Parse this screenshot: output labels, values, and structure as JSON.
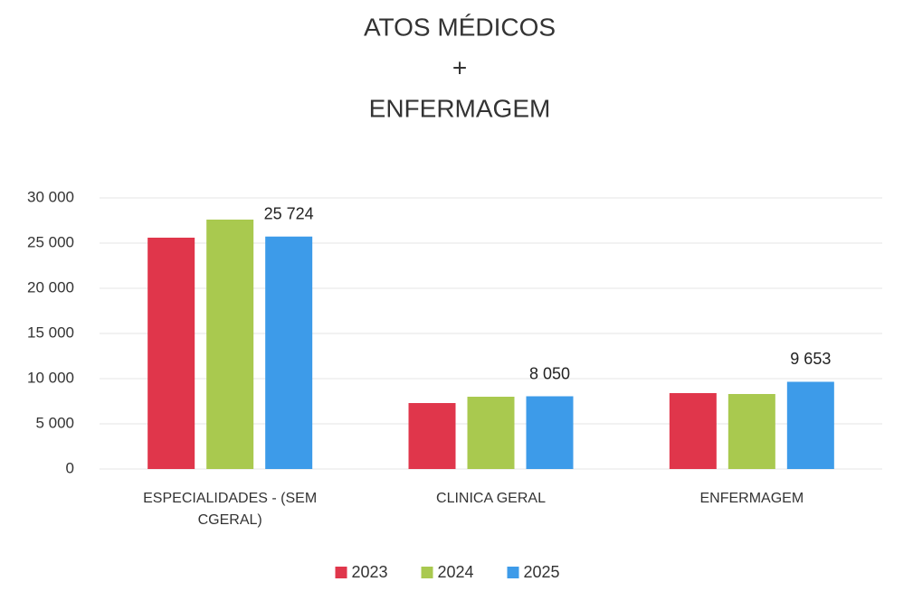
{
  "chart_data": {
    "type": "bar",
    "title": [
      "ATOS MÉDICOS",
      "+",
      "ENFERMAGEM"
    ],
    "categories": [
      "ESPECIALIDADES - (SEM CGERAL)",
      "CLINICA GERAL",
      "ENFERMAGEM"
    ],
    "series": [
      {
        "name": "2023",
        "color": "#e0364b",
        "values": [
          25600,
          7300,
          8400
        ]
      },
      {
        "name": "2024",
        "color": "#a9c94f",
        "values": [
          27600,
          8000,
          8300
        ]
      },
      {
        "name": "2025",
        "color": "#3d9be9",
        "values": [
          25724,
          8050,
          9653
        ],
        "value_labels": [
          "25 724",
          "8 050",
          "9 653"
        ]
      }
    ],
    "ylim": [
      0,
      30000
    ],
    "yticks": [
      0,
      {
        "value": 5000,
        "label": "5 000"
      },
      {
        "value": 10000,
        "label": "10 000"
      },
      {
        "value": 15000,
        "label": "15 000"
      },
      {
        "value": 20000,
        "label": "20 000"
      },
      {
        "value": 25000,
        "label": "25 000"
      },
      {
        "value": 30000,
        "label": "30 000"
      }
    ],
    "grid": true,
    "legend": "bottom"
  }
}
